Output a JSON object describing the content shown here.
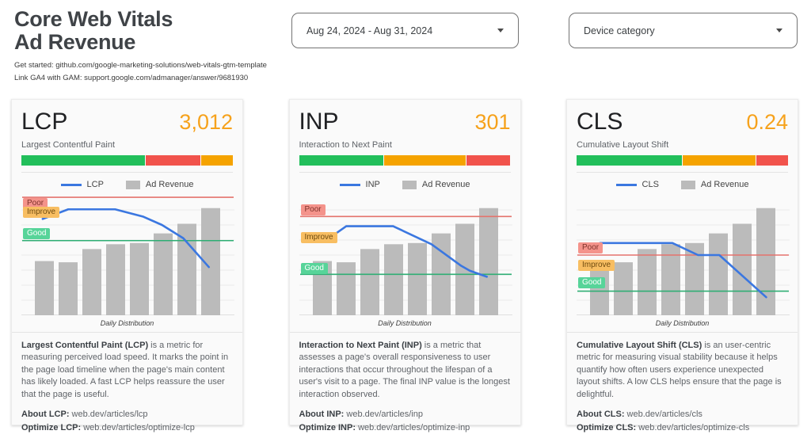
{
  "header": {
    "title_line1": "Core Web Vitals",
    "title_line2": "Ad Revenue",
    "link1": "Get started: github.com/google-marketing-solutions/web-vitals-gtm-template",
    "link2": "Link GA4 with GAM: support.google.com/admanager/answer/9681930"
  },
  "filters": {
    "date_range": "Aug 24, 2024 - Aug 31, 2024",
    "device_category": "Device category"
  },
  "colors": {
    "accent_orange": "#F6A21C",
    "segment_green": "#22BF5B",
    "segment_red": "#F1534C",
    "segment_orange": "#F5A300",
    "bar_gray": "#BBBBBB",
    "line_blue": "#3B77E0",
    "threshold_red": "#E4736C",
    "threshold_green": "#2FAE74",
    "gridline": "#E9E9E9"
  },
  "cards": [
    {
      "metric": "LCP",
      "value": "3,012",
      "subtitle": "Largest Contentful Paint",
      "legend_metric_label": "LCP",
      "legend_revenue_label": "Ad Revenue",
      "axis_label": "Daily Distribution",
      "desc_bold": "Largest Contentful Paint (LCP)",
      "desc_rest": " is a metric for measuring perceived load speed. It marks the point in the page load timeline when the page's main content has likely loaded. A fast LCP helps reassure the user that the page is useful.",
      "about_label": "About LCP:",
      "about_value": " web.dev/articles/lcp",
      "optimize_label": "Optimize LCP:",
      "optimize_value": " web.dev/articles/optimize-lcp"
    },
    {
      "metric": "INP",
      "value": "301",
      "subtitle": "Interaction to Next Paint",
      "legend_metric_label": "INP",
      "legend_revenue_label": "Ad Revenue",
      "axis_label": "Daily Distribution",
      "desc_bold": "Interaction to Next Paint (INP)",
      "desc_rest": " is a metric that assesses a page's overall responsiveness to user interactions that occur throughout the lifespan of a user's visit to a page. The final INP value is the longest interaction observed.",
      "about_label": "About INP:",
      "about_value": " web.dev/articles/inp",
      "optimize_label": "Optimize INP:",
      "optimize_value": " web.dev/articles/optimize-inp"
    },
    {
      "metric": "CLS",
      "value": "0.24",
      "subtitle": "Cumulative Layout Shift",
      "legend_metric_label": "CLS",
      "legend_revenue_label": "Ad Revenue",
      "axis_label": "Daily Distribution",
      "desc_bold": "Cumulative Layout Shift (CLS)",
      "desc_rest": " is an user-centric metric for measuring visual stability because it helps quantify how often users experience unexpected layout shifts. A low CLS helps ensure that the page is delightful.",
      "about_label": "About CLS:",
      "about_value": " web.dev/articles/cls",
      "optimize_label": "Optimize CLS:",
      "optimize_value": " web.dev/articles/optimize-cls"
    }
  ],
  "chart_data": [
    {
      "type": "bar",
      "title": "LCP Daily Distribution (bar = Ad Revenue, line = LCP)",
      "num_bars": 8,
      "bar_series": {
        "name": "Ad Revenue",
        "values_pct_of_plot_height": [
          45,
          44,
          55,
          59,
          60,
          68,
          76,
          89
        ]
      },
      "line_series": {
        "name": "LCP",
        "points_pct": [
          [
            10,
            80
          ],
          [
            22,
            88
          ],
          [
            44,
            88
          ],
          [
            57,
            82
          ],
          [
            66,
            75
          ],
          [
            76,
            64
          ],
          [
            88,
            40
          ]
        ]
      },
      "threshold_lines": {
        "poor_red_pct": 98,
        "good_green_pct": 62
      },
      "badges": [
        {
          "label": "Poor",
          "class": "badge-poor",
          "y_pct": 92
        },
        {
          "label": "Improve",
          "class": "badge-improve",
          "y_pct": 85
        },
        {
          "label": "Good",
          "class": "badge-good",
          "y_pct": 67
        }
      ],
      "xlabel": "Daily Distribution",
      "distribution_segments": [
        {
          "color_key": "segment_green",
          "pct": 59
        },
        {
          "color_key": "segment_red",
          "pct": 26
        },
        {
          "color_key": "segment_orange",
          "pct": 15
        }
      ]
    },
    {
      "type": "bar",
      "title": "INP Daily Distribution (bar = Ad Revenue, line = INP)",
      "num_bars": 8,
      "bar_series": {
        "name": "Ad Revenue",
        "values_pct_of_plot_height": [
          45,
          44,
          55,
          59,
          60,
          68,
          76,
          89
        ]
      },
      "line_series": {
        "name": "INP",
        "points_pct": [
          [
            14,
            64
          ],
          [
            22,
            74
          ],
          [
            44,
            74
          ],
          [
            62,
            59
          ],
          [
            76,
            41
          ],
          [
            80,
            37
          ],
          [
            88,
            32
          ]
        ]
      },
      "threshold_lines": {
        "poor_red_pct": 82,
        "good_green_pct": 34
      },
      "badges": [
        {
          "label": "Poor",
          "class": "badge-poor",
          "y_pct": 87
        },
        {
          "label": "Improve",
          "class": "badge-improve",
          "y_pct": 64
        },
        {
          "label": "Good",
          "class": "badge-good",
          "y_pct": 38
        }
      ],
      "xlabel": "Daily Distribution",
      "distribution_segments": [
        {
          "color_key": "segment_green",
          "pct": 40
        },
        {
          "color_key": "segment_orange",
          "pct": 39
        },
        {
          "color_key": "segment_red",
          "pct": 21
        }
      ]
    },
    {
      "type": "bar",
      "title": "CLS Daily Distribution (bar = Ad Revenue, line = CLS)",
      "num_bars": 8,
      "bar_series": {
        "name": "Ad Revenue",
        "values_pct_of_plot_height": [
          45,
          44,
          55,
          59,
          60,
          68,
          76,
          89
        ]
      },
      "line_series": {
        "name": "CLS",
        "points_pct": [
          [
            11,
            60
          ],
          [
            45,
            60
          ],
          [
            57,
            50
          ],
          [
            67,
            50
          ],
          [
            89,
            15
          ]
        ]
      },
      "threshold_lines": {
        "poor_red_pct": 50,
        "good_green_pct": 20
      },
      "badges": [
        {
          "label": "Poor",
          "class": "badge-poor",
          "y_pct": 55
        },
        {
          "label": "Improve",
          "class": "badge-improve",
          "y_pct": 41
        },
        {
          "label": "Good",
          "class": "badge-good",
          "y_pct": 26
        }
      ],
      "xlabel": "Daily Distribution",
      "distribution_segments": [
        {
          "color_key": "segment_green",
          "pct": 50
        },
        {
          "color_key": "segment_orange",
          "pct": 35
        },
        {
          "color_key": "segment_red",
          "pct": 15
        }
      ]
    }
  ]
}
